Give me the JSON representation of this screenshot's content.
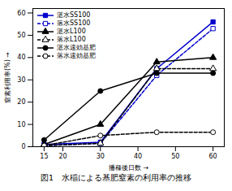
{
  "chart_data": {
    "type": "line",
    "caption": "図1　水稲による基肥窒素の利用率の推移",
    "xlabel": "播種後日数",
    "ylabel": "窒素利用率(%)",
    "x": [
      15,
      30,
      45,
      60
    ],
    "series": [
      {
        "name": "湛水SS100",
        "color": "#0000cc",
        "line_style": "solid",
        "marker": "square",
        "values": [
          1,
          2,
          35,
          56
        ]
      },
      {
        "name": "落水SS100",
        "color": "#0000cc",
        "line_style": "dashed",
        "marker": "square-open",
        "values": [
          0.5,
          1.5,
          32,
          53
        ]
      },
      {
        "name": "湛水L100",
        "color": "#000000",
        "line_style": "solid",
        "marker": "triangle",
        "values": [
          1,
          10,
          38,
          40
        ]
      },
      {
        "name": "落水L100",
        "color": "#000000",
        "line_style": "dashed",
        "marker": "triangle-open",
        "values": [
          0.5,
          1.5,
          35,
          35
        ]
      },
      {
        "name": "湛水速効基肥",
        "color": "#000000",
        "line_style": "solid",
        "marker": "circle",
        "values": [
          3,
          25,
          33,
          33
        ]
      },
      {
        "name": "落水速効基肥",
        "color": "#000000",
        "line_style": "dashed",
        "marker": "circle-open",
        "values": [
          0.5,
          5,
          6.5,
          6.5
        ]
      }
    ],
    "xlim": [
      12,
      63
    ],
    "ylim": [
      0,
      62
    ],
    "xticks": [
      15,
      20,
      30,
      40,
      50,
      60
    ],
    "yticks": [
      0,
      10,
      20,
      30,
      40,
      50,
      60
    ],
    "legend": "upper left",
    "grid": false
  }
}
